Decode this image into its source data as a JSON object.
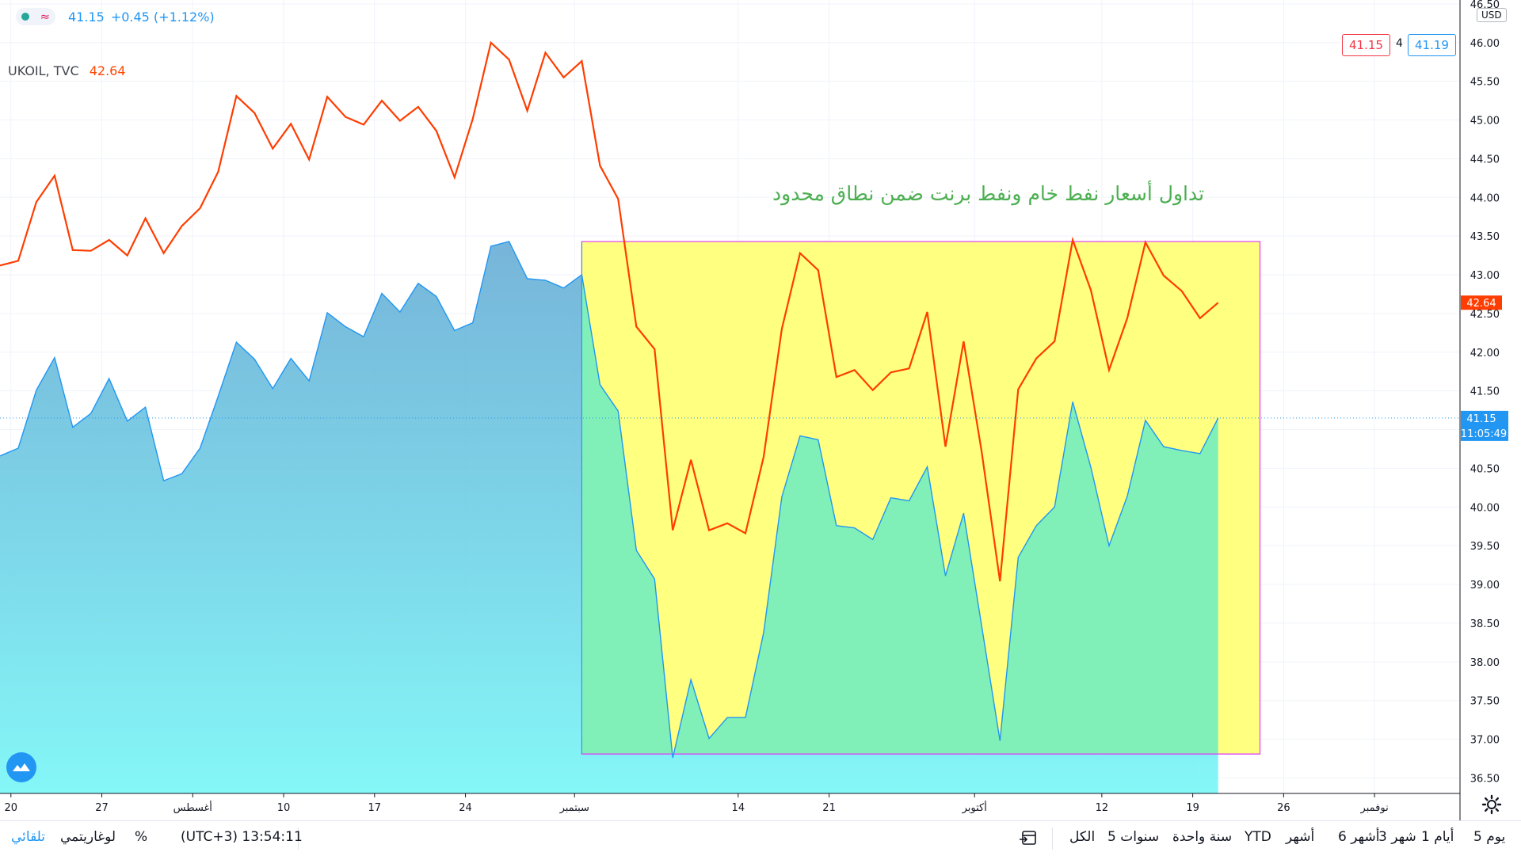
{
  "header": {
    "main_value": "41.15",
    "main_change": "+0.45 (+1.12%)",
    "brent_symbol": "UKOIL, TVC",
    "brent_value": "42.64",
    "approx_glyph": "≈"
  },
  "quote": {
    "bid": "41.15",
    "spread": "4",
    "ask": "41.19",
    "currency": "USD"
  },
  "annotation": "تداول أسعار نفط خام ونفط برنت ضمن نطاق محدود",
  "bottom_bar": {
    "ranges": [
      "يوم 5",
      "أيام 1",
      "شهر 3",
      "أشهر 6",
      "أشهر",
      "YTD",
      "سنة واحدة",
      "5 سنوات",
      "الكل"
    ],
    "timezone_time": "(UTC+3) 13:54:11",
    "percent": "%",
    "log": "لوغاريتمي",
    "auto": "تلقائي"
  },
  "colors": {
    "wti": "#2196f3",
    "brent": "#ff3d00",
    "box_fill": "#ffff80",
    "box_border": "#e040fb",
    "annotation": "#4caf50",
    "area_top": "#5fa8d3",
    "area_bottom": "#7ef7f7"
  },
  "chart_data": {
    "type": "area",
    "ylim": [
      36.3,
      46.55
    ],
    "y_ticks": [
      "36.50",
      "37.00",
      "37.50",
      "38.00",
      "38.50",
      "39.00",
      "39.50",
      "40.00",
      "40.50",
      "41.00",
      "41.50",
      "42.00",
      "42.50",
      "43.00",
      "43.50",
      "44.00",
      "44.50",
      "45.00",
      "45.50",
      "46.00",
      "46.50"
    ],
    "x_ticks": [
      {
        "i": 0.6,
        "label": "20"
      },
      {
        "i": 5.6,
        "label": "27"
      },
      {
        "i": 10.6,
        "label": "أغسطس"
      },
      {
        "i": 15.6,
        "label": "10"
      },
      {
        "i": 20.6,
        "label": "17"
      },
      {
        "i": 25.6,
        "label": "24"
      },
      {
        "i": 31.6,
        "label": "سبتمبر"
      },
      {
        "i": 40.6,
        "label": "14"
      },
      {
        "i": 45.6,
        "label": "21"
      },
      {
        "i": 53.6,
        "label": "أكتوبر"
      },
      {
        "i": 60.6,
        "label": "12"
      },
      {
        "i": 65.6,
        "label": "19"
      },
      {
        "i": 70.6,
        "label": "26"
      },
      {
        "i": 75.6,
        "label": "نوفمبر"
      }
    ],
    "x_range": [
      0,
      80.3
    ],
    "series": [
      {
        "name": "UKOIL, TVC",
        "style": "line",
        "values": [
          43.12,
          43.18,
          43.94,
          44.28,
          43.32,
          43.31,
          43.45,
          43.25,
          43.73,
          43.28,
          43.63,
          43.86,
          44.33,
          45.31,
          45.09,
          44.63,
          44.95,
          44.49,
          45.3,
          45.04,
          44.94,
          45.25,
          44.99,
          45.17,
          44.86,
          44.26,
          45.01,
          46.0,
          45.78,
          45.12,
          45.87,
          45.55,
          45.76,
          44.41,
          43.98,
          42.33,
          42.04,
          39.7,
          40.61,
          39.7,
          39.79,
          39.66,
          40.65,
          42.3,
          43.28,
          43.06,
          41.68,
          41.77,
          41.51,
          41.74,
          41.79,
          42.52,
          40.78,
          42.14,
          40.7,
          39.04,
          41.52,
          41.92,
          42.14,
          43.45,
          42.8,
          41.77,
          42.44,
          43.42,
          42.99,
          42.79,
          42.44,
          42.64
        ]
      },
      {
        "name": "",
        "style": "area",
        "values": [
          40.66,
          40.76,
          41.51,
          41.93,
          41.03,
          41.21,
          41.66,
          41.11,
          41.29,
          40.34,
          40.43,
          40.76,
          41.43,
          42.13,
          41.91,
          41.53,
          41.92,
          41.63,
          42.51,
          42.33,
          42.2,
          42.76,
          42.52,
          42.89,
          42.72,
          42.28,
          42.38,
          43.37,
          43.43,
          42.95,
          42.93,
          42.83,
          43.0,
          41.58,
          41.24,
          39.44,
          39.07,
          36.76,
          37.77,
          37.01,
          37.28,
          37.28,
          38.38,
          40.13,
          40.92,
          40.87,
          39.76,
          39.73,
          39.58,
          40.12,
          40.08,
          40.52,
          39.11,
          39.92,
          38.45,
          36.98,
          39.35,
          39.76,
          40.0,
          41.36,
          40.51,
          39.5,
          40.14,
          41.12,
          40.78,
          40.73,
          40.69,
          41.15
        ]
      }
    ],
    "range_box": {
      "start_i": 32,
      "end_i": 69.3,
      "y_low": 36.81,
      "y_high": 43.43
    },
    "last_labels": {
      "brent": "42.64",
      "wti": "41.15",
      "countdown": "11:05:49"
    }
  }
}
